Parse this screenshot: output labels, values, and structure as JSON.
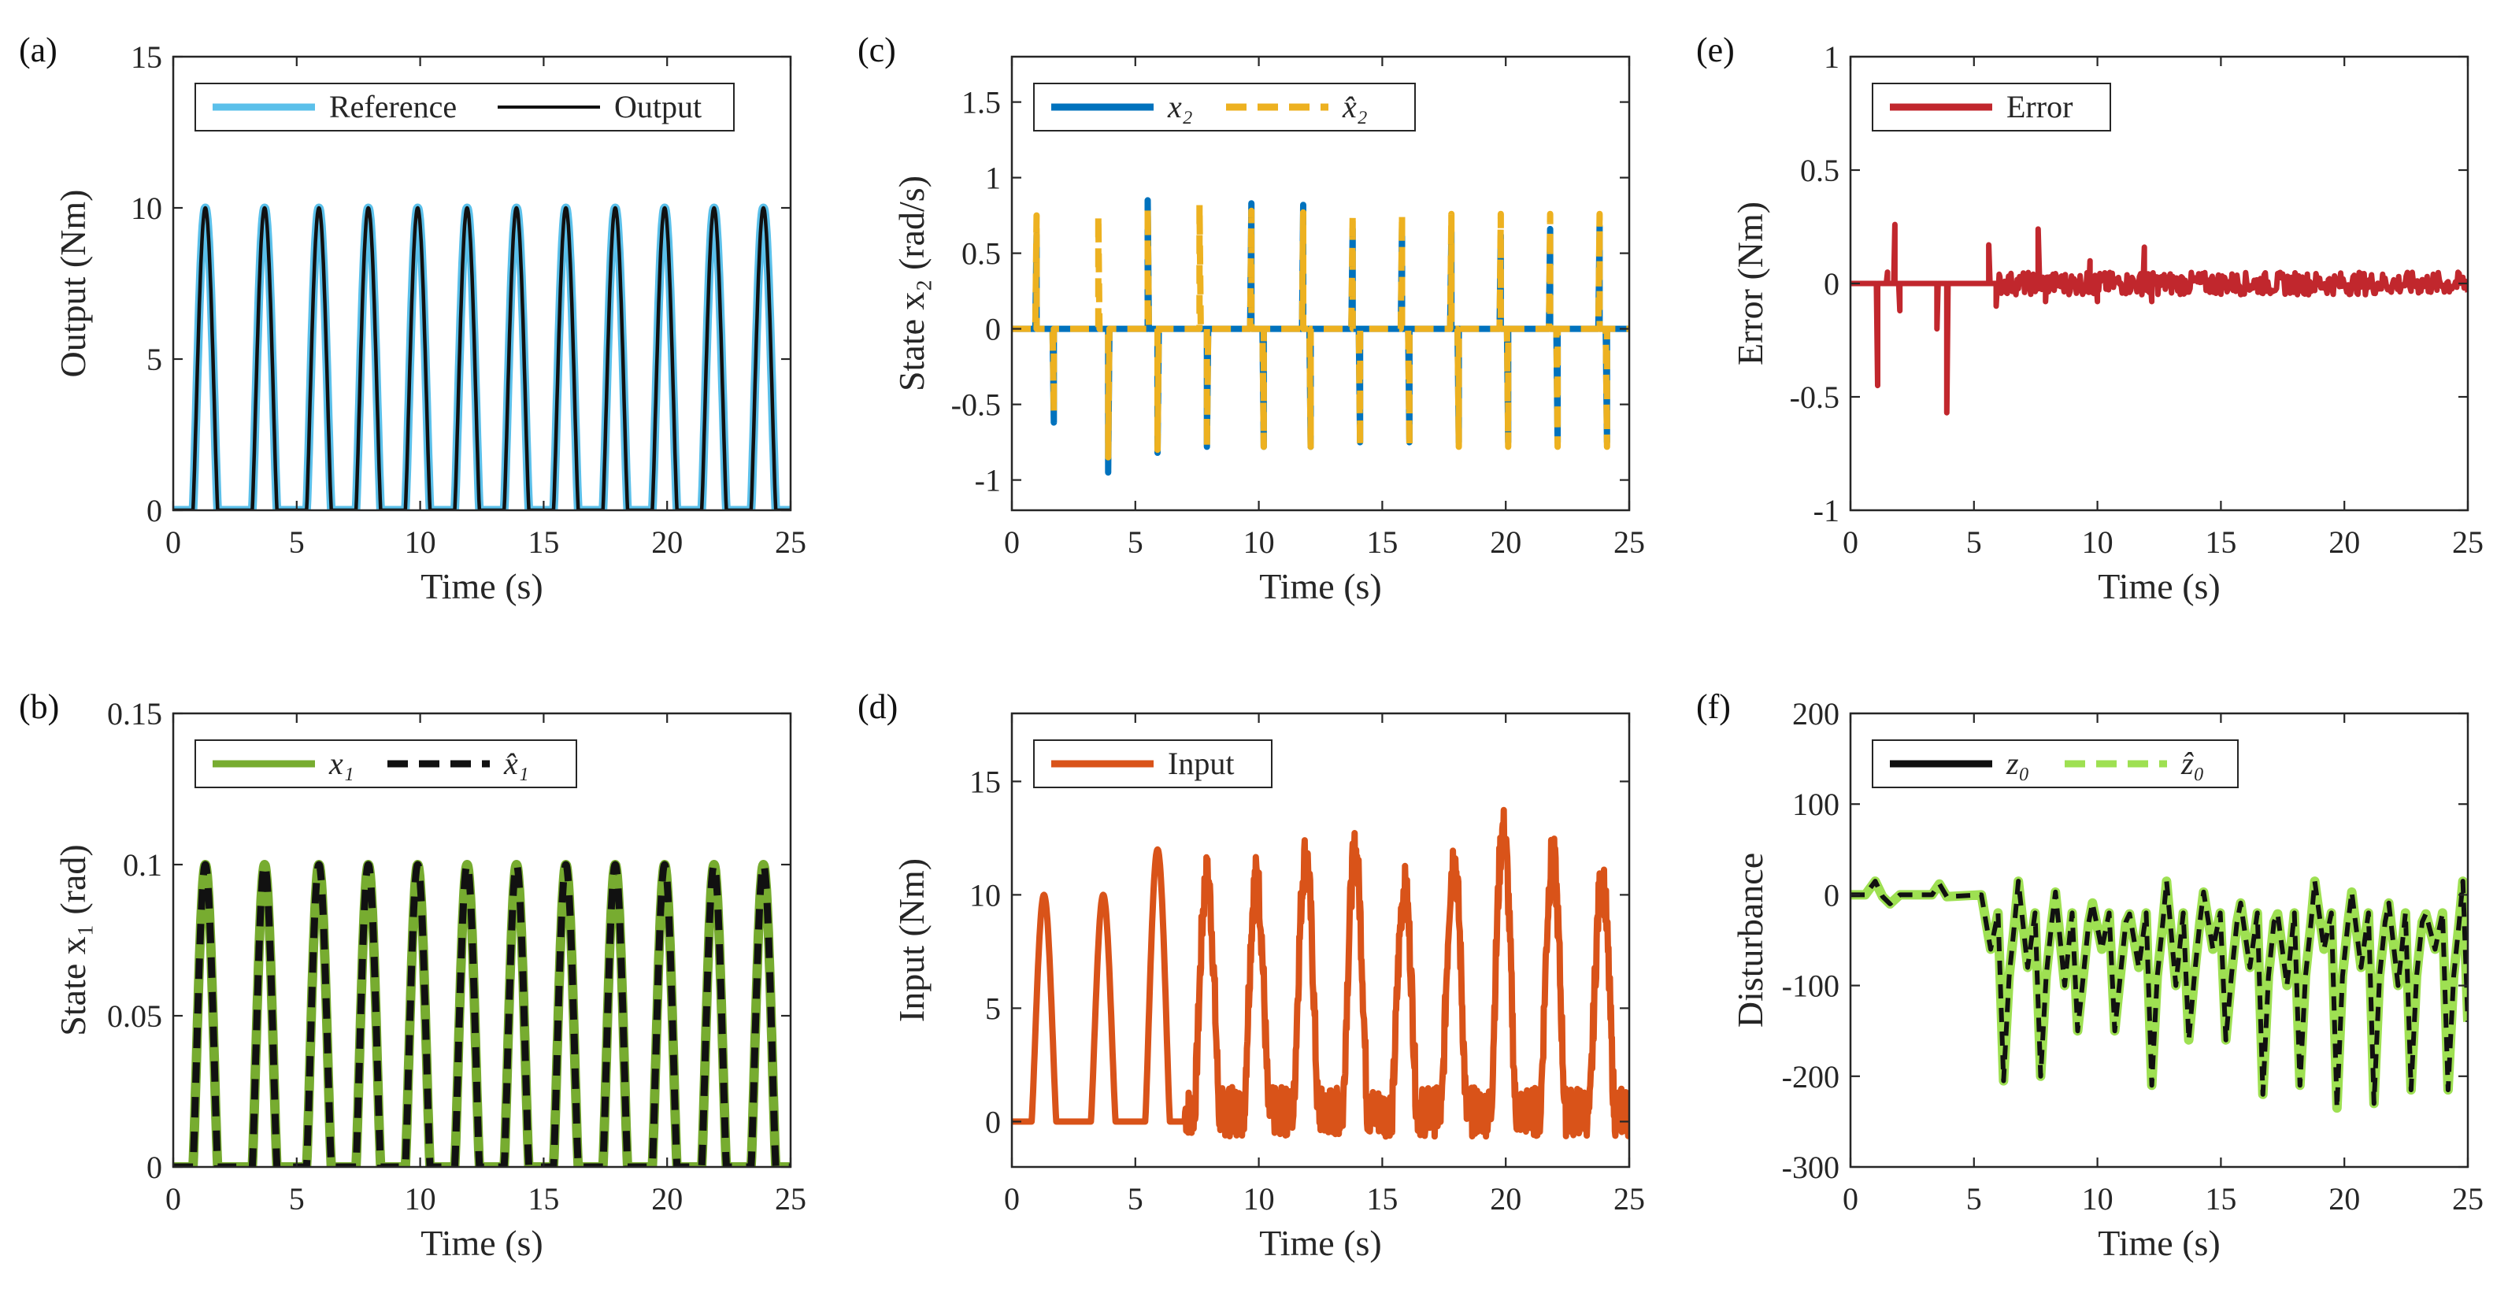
{
  "figure": {
    "colors": {
      "axis": "#262626"
    }
  },
  "chart_data": [
    {
      "id": "a",
      "panel_label": "(a)",
      "type": "line",
      "xlabel": "Time (s)",
      "ylabel": "Output (Nm)",
      "xlim": [
        0,
        25
      ],
      "ylim": [
        0,
        15
      ],
      "xticks": [
        0,
        5,
        10,
        15,
        20,
        25
      ],
      "xtick_labels": [
        "0",
        "5",
        "10",
        "15",
        "20",
        "25"
      ],
      "yticks": [
        0,
        5,
        10,
        15
      ],
      "ytick_labels": [
        "0",
        "5",
        "10",
        "15"
      ],
      "legend": {
        "position": "top",
        "entries": [
          {
            "label": "Reference",
            "color": "#5bc0ea",
            "style": "solid-thick"
          },
          {
            "label": "Output",
            "color": "#111111",
            "style": "solid"
          }
        ]
      },
      "series": [
        {
          "name": "Reference",
          "kind": "pulses",
          "color": "#5bc0ea",
          "width": 11,
          "baseline": 0,
          "amplitude": 10,
          "peaks": [
            1.3,
            3.7,
            5.9,
            7.9,
            9.9,
            11.9,
            13.9,
            15.9,
            17.9,
            19.9,
            21.9,
            23.9
          ],
          "halfwidth": 0.5
        },
        {
          "name": "Output",
          "kind": "pulses",
          "color": "#111111",
          "width": 4.5,
          "baseline": 0,
          "amplitude": 10,
          "peaks": [
            1.3,
            3.7,
            5.9,
            7.9,
            9.9,
            11.9,
            13.9,
            15.9,
            17.9,
            19.9,
            21.9,
            23.9
          ],
          "halfwidth": 0.5
        }
      ]
    },
    {
      "id": "b",
      "panel_label": "(b)",
      "type": "line",
      "xlabel": "Time (s)",
      "ylabel": "State x₁ (rad)",
      "xlim": [
        0,
        25
      ],
      "ylim": [
        0,
        0.15
      ],
      "xticks": [
        0,
        5,
        10,
        15,
        20,
        25
      ],
      "xtick_labels": [
        "0",
        "5",
        "10",
        "15",
        "20",
        "25"
      ],
      "yticks": [
        0,
        0.05,
        0.1,
        0.15
      ],
      "ytick_labels": [
        "0",
        "0.05",
        "0.1",
        "0.15"
      ],
      "legend": {
        "position": "top",
        "entries": [
          {
            "label": "x₁",
            "color": "#77ac30",
            "style": "solid-thick"
          },
          {
            "label": "x̂₁",
            "color": "#111111",
            "style": "dash-thick"
          }
        ]
      },
      "series": [
        {
          "name": "x1",
          "kind": "pulses",
          "color": "#77ac30",
          "width": 12,
          "baseline": 0,
          "amplitude": 0.1,
          "peaks": [
            1.3,
            3.7,
            5.9,
            7.9,
            9.9,
            11.9,
            13.9,
            15.9,
            17.9,
            19.9,
            21.9,
            23.9
          ],
          "halfwidth": 0.5
        },
        {
          "name": "x1_hat",
          "kind": "pulses",
          "color": "#111111",
          "width": 9,
          "dash": "26 18",
          "baseline": 0,
          "amplitude": 0.1,
          "peaks": [
            1.3,
            3.7,
            5.9,
            7.9,
            9.9,
            11.9,
            13.9,
            15.9,
            17.9,
            19.9,
            21.9,
            23.9
          ],
          "halfwidth": 0.5
        }
      ]
    },
    {
      "id": "c",
      "panel_label": "(c)",
      "type": "line",
      "xlabel": "Time (s)",
      "ylabel": "State x₂ (rad/s)",
      "xlim": [
        0,
        25
      ],
      "ylim": [
        -1.2,
        1.8
      ],
      "xticks": [
        0,
        5,
        10,
        15,
        20,
        25
      ],
      "xtick_labels": [
        "0",
        "5",
        "10",
        "15",
        "20",
        "25"
      ],
      "yticks": [
        -1,
        -0.5,
        0,
        0.5,
        1,
        1.5
      ],
      "ytick_labels": [
        "-1",
        "-0.5",
        "0",
        "0.5",
        "1",
        "1.5"
      ],
      "legend": {
        "position": "top-left",
        "entries": [
          {
            "label": "x₂",
            "color": "#0072bd",
            "style": "solid-thick"
          },
          {
            "label": "x̂₂",
            "color": "#edb120",
            "style": "dash-thick"
          }
        ]
      },
      "series": [
        {
          "name": "x2",
          "kind": "spikes",
          "color": "#0072bd",
          "width": 8,
          "points": [
            [
              1.0,
              0.62
            ],
            [
              1.7,
              -0.62
            ],
            [
              3.5,
              0.0
            ],
            [
              3.9,
              -0.95
            ],
            [
              5.5,
              0.85
            ],
            [
              5.9,
              -0.82
            ],
            [
              7.6,
              0.0
            ],
            [
              7.9,
              -0.78
            ],
            [
              9.7,
              0.83
            ],
            [
              10.2,
              -0.78
            ],
            [
              11.8,
              0.82
            ],
            [
              12.1,
              -0.78
            ],
            [
              13.8,
              0.66
            ],
            [
              14.1,
              -0.75
            ],
            [
              15.8,
              0.68
            ],
            [
              16.1,
              -0.75
            ],
            [
              17.8,
              0.64
            ],
            [
              18.1,
              -0.75
            ],
            [
              19.8,
              0.62
            ],
            [
              20.1,
              -0.75
            ],
            [
              21.8,
              0.66
            ],
            [
              22.1,
              -0.75
            ],
            [
              23.8,
              0.68
            ],
            [
              24.1,
              -0.75
            ]
          ]
        },
        {
          "name": "x2_hat",
          "kind": "spikes",
          "color": "#edb120",
          "width": 8,
          "dash": "24 14",
          "points": [
            [
              1.0,
              0.75
            ],
            [
              1.7,
              -0.55
            ],
            [
              3.5,
              0.75
            ],
            [
              3.9,
              -0.85
            ],
            [
              5.5,
              0.8
            ],
            [
              5.9,
              -0.8
            ],
            [
              7.6,
              0.82
            ],
            [
              7.9,
              -0.78
            ],
            [
              9.7,
              0.78
            ],
            [
              10.2,
              -0.78
            ],
            [
              11.8,
              0.77
            ],
            [
              12.1,
              -0.78
            ],
            [
              13.8,
              0.76
            ],
            [
              14.1,
              -0.78
            ],
            [
              15.8,
              0.76
            ],
            [
              16.1,
              -0.78
            ],
            [
              17.8,
              0.76
            ],
            [
              18.1,
              -0.78
            ],
            [
              19.8,
              0.76
            ],
            [
              20.1,
              -0.78
            ],
            [
              21.8,
              0.76
            ],
            [
              22.1,
              -0.78
            ],
            [
              23.8,
              0.76
            ],
            [
              24.1,
              -0.78
            ]
          ]
        }
      ]
    },
    {
      "id": "d",
      "panel_label": "(d)",
      "type": "line",
      "xlabel": "Time (s)",
      "ylabel": "Input (Nm)",
      "xlim": [
        0,
        25
      ],
      "ylim": [
        -2,
        18
      ],
      "xticks": [
        0,
        5,
        10,
        15,
        20,
        25
      ],
      "xtick_labels": [
        "0",
        "5",
        "10",
        "15",
        "20",
        "25"
      ],
      "yticks": [
        0,
        5,
        10,
        15
      ],
      "ytick_labels": [
        "0",
        "5",
        "10",
        "15"
      ],
      "legend": {
        "position": "top-left",
        "entries": [
          {
            "label": "Input",
            "color": "#d95319",
            "style": "solid-thick"
          }
        ]
      },
      "series": [
        {
          "name": "Input",
          "kind": "pulses",
          "color": "#d95319",
          "width": 8,
          "baseline": 0,
          "noise_after": 7,
          "noise_level": 1.0,
          "peaks": [
            1.3,
            3.7,
            5.9,
            7.9,
            9.9,
            11.9,
            13.9,
            15.9,
            17.9,
            19.9,
            21.9,
            23.9
          ],
          "amplitudes": [
            10,
            10,
            12,
            10.3,
            10.3,
            11.3,
            11.4,
            9.8,
            11.2,
            12.4,
            11.2,
            10.2
          ],
          "halfwidth": 0.5
        }
      ]
    },
    {
      "id": "e",
      "panel_label": "(e)",
      "type": "line",
      "xlabel": "Time (s)",
      "ylabel": "Error (Nm)",
      "xlim": [
        0,
        25
      ],
      "ylim": [
        -1,
        1
      ],
      "xticks": [
        0,
        5,
        10,
        15,
        20,
        25
      ],
      "xtick_labels": [
        "0",
        "5",
        "10",
        "15",
        "20",
        "25"
      ],
      "yticks": [
        -1,
        -0.5,
        0,
        0.5,
        1
      ],
      "ytick_labels": [
        "-1",
        "-0.5",
        "0",
        "0.5",
        "1"
      ],
      "legend": {
        "position": "top-left",
        "entries": [
          {
            "label": "Error",
            "color": "#c1272d",
            "style": "solid-thick"
          }
        ]
      },
      "series": [
        {
          "name": "Error",
          "kind": "spikes",
          "color": "#c1272d",
          "width": 7,
          "noise_after": 6,
          "noise_level": 0.05,
          "points": [
            [
              1.1,
              -0.45
            ],
            [
              1.5,
              0.05
            ],
            [
              1.8,
              0.26
            ],
            [
              2.0,
              -0.12
            ],
            [
              3.5,
              -0.2
            ],
            [
              3.9,
              -0.57
            ],
            [
              5.6,
              0.17
            ],
            [
              5.9,
              -0.1
            ],
            [
              7.6,
              0.24
            ],
            [
              7.9,
              -0.08
            ],
            [
              9.7,
              0.1
            ],
            [
              10.0,
              -0.08
            ],
            [
              11.9,
              0.16
            ],
            [
              12.2,
              -0.08
            ]
          ]
        }
      ]
    },
    {
      "id": "f",
      "panel_label": "(f)",
      "type": "line",
      "xlabel": "Time (s)",
      "ylabel": "Disturbance",
      "xlim": [
        0,
        25
      ],
      "ylim": [
        -300,
        200
      ],
      "xticks": [
        0,
        5,
        10,
        15,
        20,
        25
      ],
      "xtick_labels": [
        "0",
        "5",
        "10",
        "15",
        "20",
        "25"
      ],
      "yticks": [
        -300,
        -200,
        -100,
        0,
        100,
        200
      ],
      "ytick_labels": [
        "-300",
        "-200",
        "-100",
        "0",
        "100",
        "200"
      ],
      "legend": {
        "position": "top",
        "entries": [
          {
            "label": "z₀",
            "color": "#111111",
            "style": "solid-thick"
          },
          {
            "label": "ẑ₀",
            "color": "#9ee052",
            "style": "dash-thick"
          }
        ]
      },
      "series": [
        {
          "name": "z0",
          "kind": "disturbance",
          "color": "#9ee052",
          "width": 12,
          "minima": [
            -205,
            -200,
            -150,
            -150,
            -210,
            -160,
            -160,
            -220,
            -210,
            -235,
            -230,
            -215,
            -215
          ]
        },
        {
          "name": "z0_hat",
          "kind": "disturbance",
          "color": "#111111",
          "width": 6,
          "dash": "18 12",
          "minima": [
            -205,
            -200,
            -150,
            -150,
            -210,
            -160,
            -160,
            -220,
            -210,
            -235,
            -230,
            -215,
            -215
          ]
        }
      ]
    }
  ]
}
